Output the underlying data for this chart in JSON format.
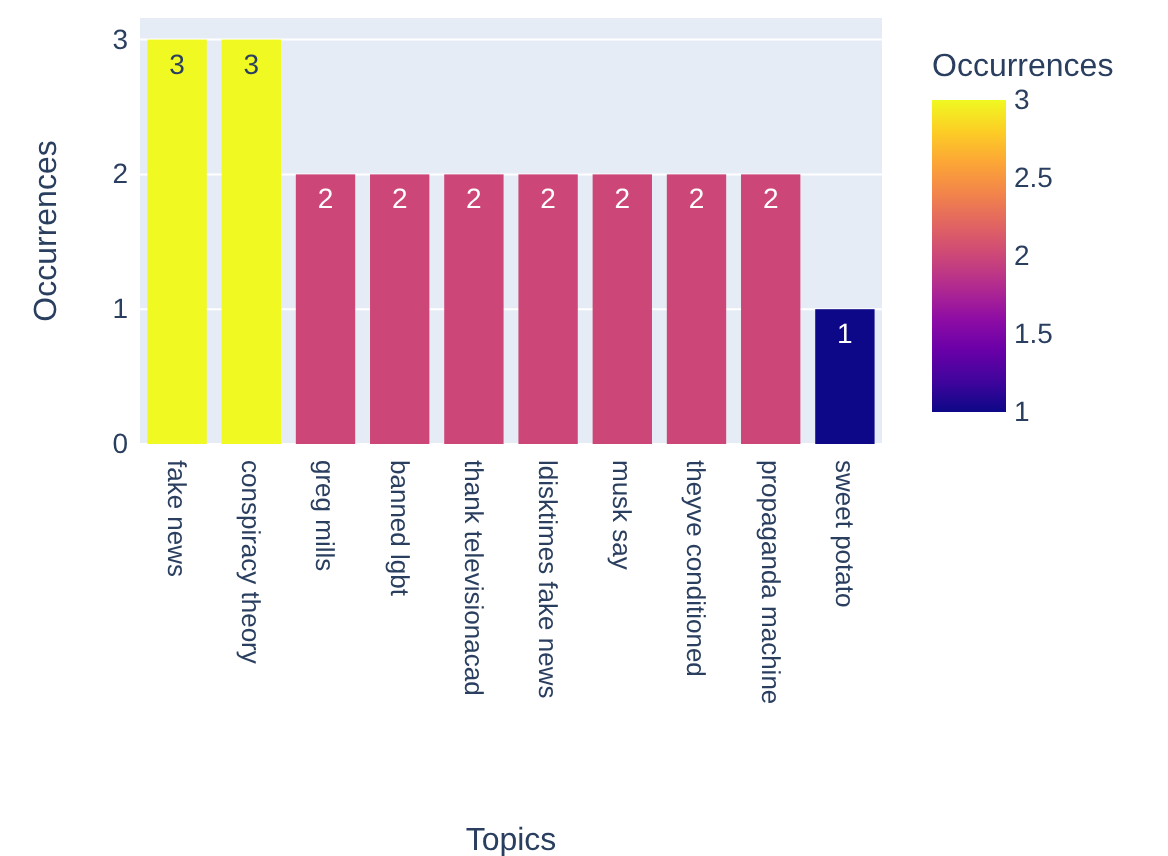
{
  "chart_data": {
    "type": "bar",
    "xlabel": "Topics",
    "ylabel": "Occurrences",
    "clabel": "Occurrences",
    "categories": [
      "fake news",
      "conspiracy theory",
      "greg mills",
      "banned lgbt",
      "thank televisionacad",
      "ldisktimes fake news",
      "musk say",
      "theyve conditioned",
      "propaganda machine",
      "sweet potato"
    ],
    "values": [
      3,
      3,
      2,
      2,
      2,
      2,
      2,
      2,
      2,
      1
    ],
    "colors": [
      "#f0f921",
      "#f0f921",
      "#cc4778",
      "#cc4778",
      "#cc4778",
      "#cc4778",
      "#cc4778",
      "#cc4778",
      "#cc4778",
      "#0d0887"
    ],
    "ylim": [
      0,
      3.16
    ],
    "yticks": [
      0,
      1,
      2,
      3
    ],
    "grid": "y",
    "data_labels": true,
    "clim": [
      1,
      3
    ],
    "cticks": [
      1,
      1.5,
      2,
      2.5,
      3
    ]
  }
}
